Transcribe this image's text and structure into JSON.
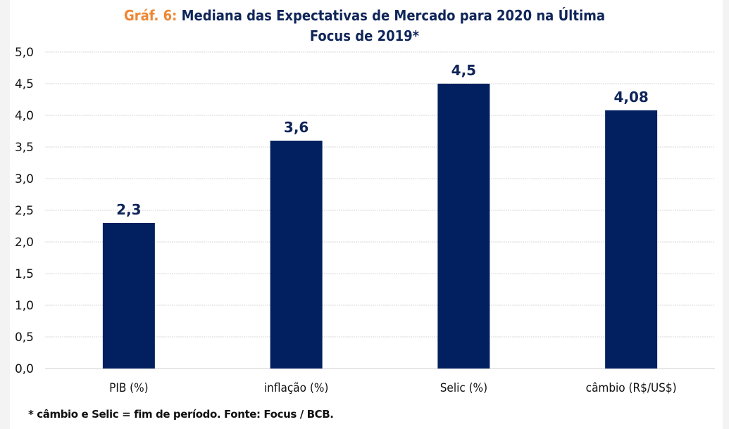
{
  "chart_data": {
    "type": "bar",
    "title_prefix": "Gráf. 6:",
    "title_line1": "Mediana das Expectativas de Mercado para 2020 na Última",
    "title_line2": "Focus de 2019*",
    "categories": [
      "PIB (%)",
      "inflação (%)",
      "Selic (%)",
      "câmbio (R$/US$)"
    ],
    "values": [
      2.3,
      3.6,
      4.5,
      4.08
    ],
    "data_labels": [
      "2,3",
      "3,6",
      "4,5",
      "4,08"
    ],
    "ylim": [
      0,
      5
    ],
    "yticks": [
      0,
      0.5,
      1,
      1.5,
      2,
      2.5,
      3,
      3.5,
      4,
      4.5,
      5
    ],
    "ytick_labels": [
      "0,0",
      "0,5",
      "1,0",
      "1,5",
      "2,0",
      "2,5",
      "3,0",
      "3,5",
      "4,0",
      "4,5",
      "5,0"
    ],
    "xlabel": "",
    "ylabel": "",
    "grid": true,
    "legend": "none",
    "colors": {
      "bar": "#02205f",
      "title_prefix": "#ef8633",
      "title": "#0f2559",
      "grid": "#d9d9d9"
    },
    "footnote": "* câmbio e Selic = fim de período. Fonte: Focus / BCB."
  }
}
